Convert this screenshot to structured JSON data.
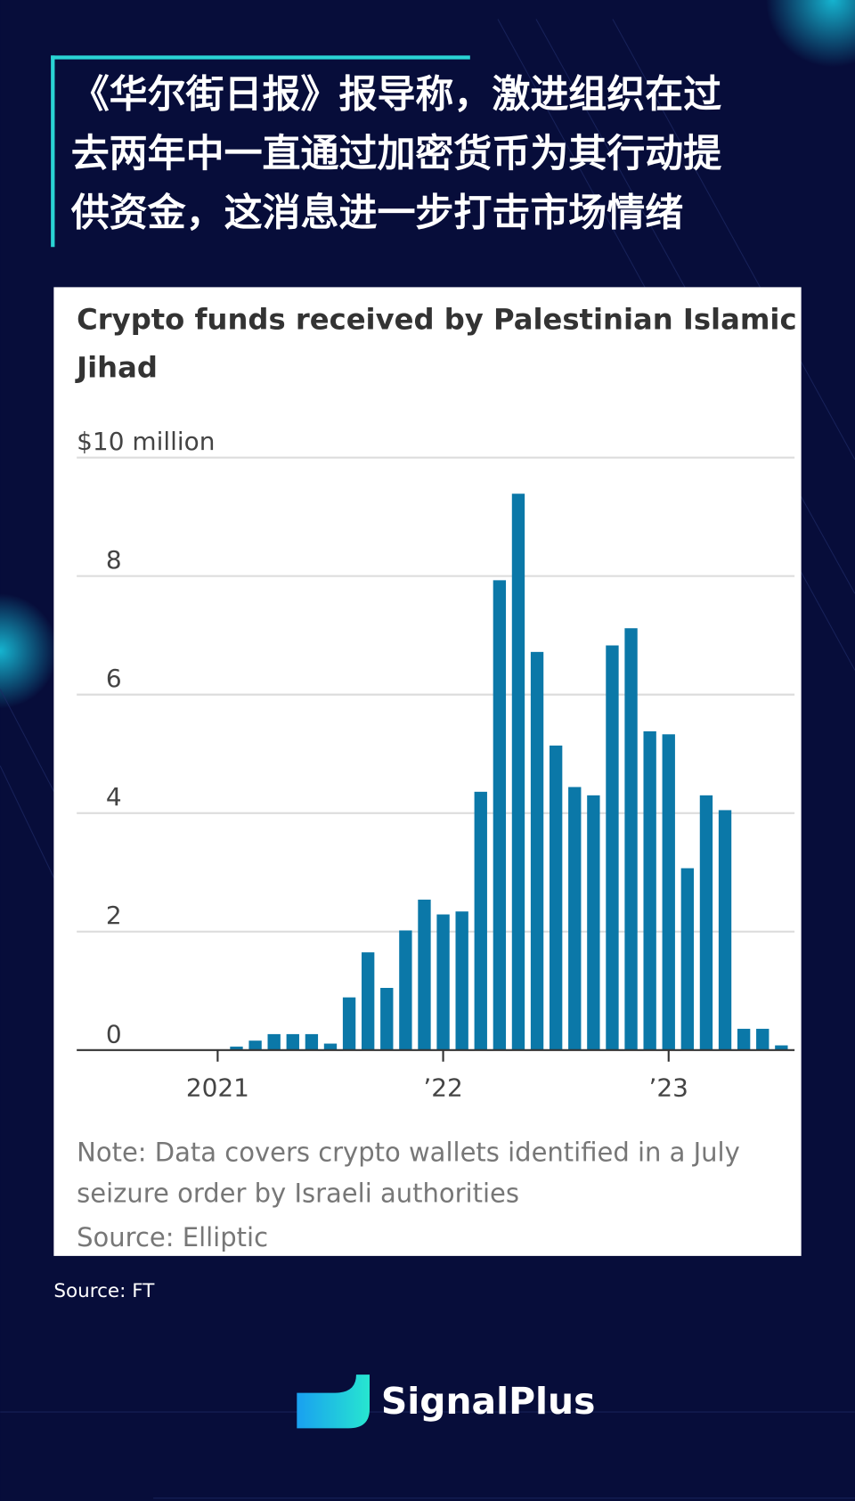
{
  "headline": [
    "《华尔街日报》报导称，激进组织在过",
    "去两年中一直通过加密货币为其行动提",
    "供资金，这消息进一步打击市场情绪"
  ],
  "chart_data": {
    "type": "bar",
    "title": [
      "Crypto funds received by Palestinian Islamic",
      "Jihad"
    ],
    "categories": [
      null,
      null,
      null,
      null,
      null,
      null,
      null,
      null,
      null,
      null,
      null,
      null,
      null,
      null,
      null,
      null,
      null,
      null,
      null,
      null,
      null,
      null,
      null,
      null,
      null,
      null,
      null,
      null,
      null,
      null
    ],
    "values": [
      0.06,
      0.16,
      0.27,
      0.27,
      0.27,
      0.11,
      0.89,
      1.65,
      1.05,
      2.02,
      2.54,
      2.29,
      2.34,
      4.36,
      7.93,
      9.39,
      6.72,
      5.14,
      4.44,
      4.3,
      6.83,
      7.12,
      5.38,
      5.33,
      3.07,
      4.3,
      4.05,
      0.36,
      0.36,
      0.08
    ],
    "color": "#0b78a8",
    "xlim": [
      -8.5,
      29.7
    ],
    "xticks": [
      {
        "value": -1,
        "label": "2021"
      },
      {
        "value": 11,
        "label": "’22"
      },
      {
        "value": 23,
        "label": "’23"
      }
    ],
    "ylim": [
      0,
      10
    ],
    "yticks": [
      0,
      2,
      4,
      6,
      8,
      {
        "value": 10,
        "label": "$10 million"
      }
    ],
    "grid": true,
    "note": [
      "Note: Data covers crypto wallets identified in a July",
      "seizure order by Israeli authorities"
    ],
    "source": "Source: Elliptic"
  },
  "footer_source": "Source: FT",
  "brand": "SignalPlus"
}
